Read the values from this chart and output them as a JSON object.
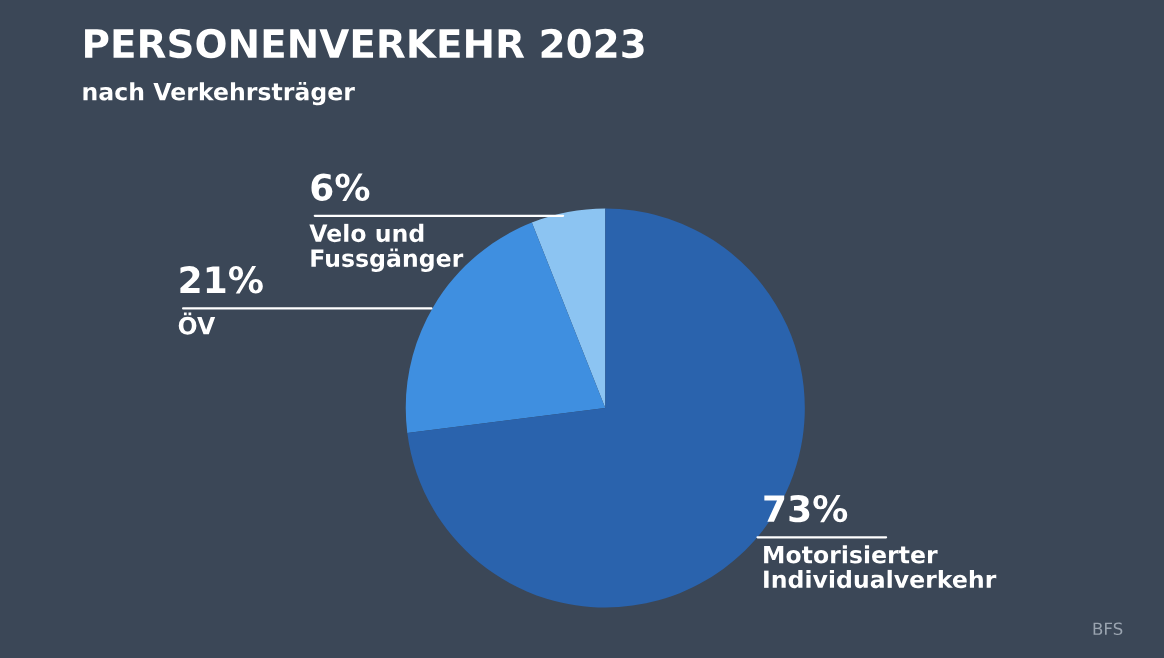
{
  "chart_data": {
    "type": "pie",
    "title": "PERSONENVERKEHR 2023",
    "subtitle": "nach Verkehrsträger",
    "categories": [
      "Velo und\nFussgänger",
      "ÖV",
      "Motorisierter\nIndividualverkehr"
    ],
    "values": [
      6,
      21,
      73
    ],
    "value_labels": [
      "6%",
      "21%",
      "73%"
    ],
    "colors": [
      "#8cc4f2",
      "#3f8fe0",
      "#2a63ad"
    ],
    "annotations": [
      "BFS"
    ],
    "legend": false
  }
}
